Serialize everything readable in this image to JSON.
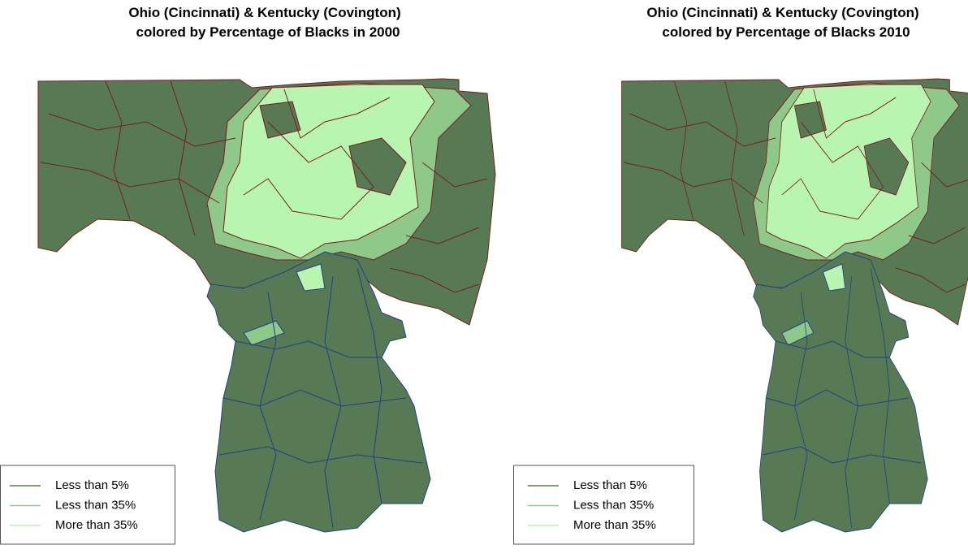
{
  "maps": [
    {
      "title": [
        "Ohio (Cincinnati) & Kentucky (Covington)",
        "colored by Percentage of Blacks in 2000"
      ],
      "legend": [
        {
          "label": "Less than 5%",
          "color": "#577a55"
        },
        {
          "label": "Less than 35%",
          "color": "#8fc98a"
        },
        {
          "label": "More than 35%",
          "color": "#b8f5b0"
        }
      ]
    },
    {
      "title": [
        "Ohio (Cincinnati) & Kentucky (Covington)",
        "colored by Percentage of Blacks 2010"
      ],
      "legend": [
        {
          "label": "Less than 5%",
          "color": "#577a55"
        },
        {
          "label": "Less than 35%",
          "color": "#8fc98a"
        },
        {
          "label": "More than 35%",
          "color": "#b8f5b0"
        }
      ]
    }
  ]
}
